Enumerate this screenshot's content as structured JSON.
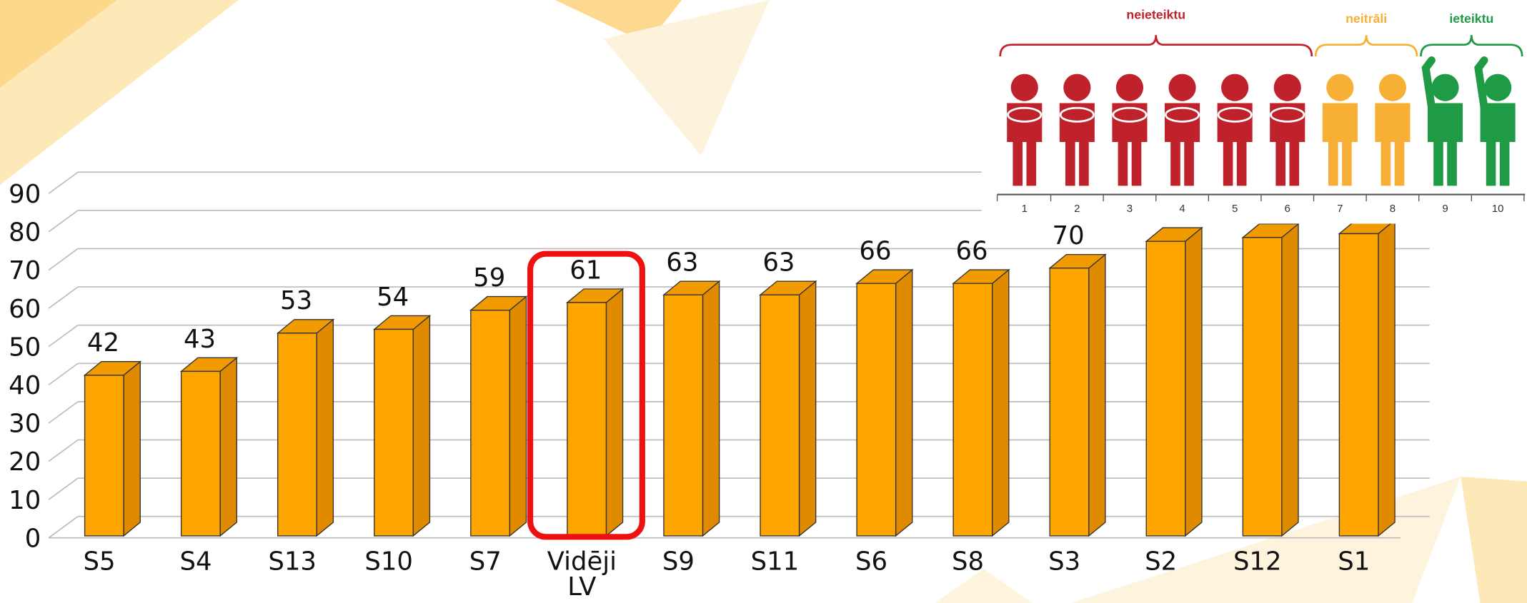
{
  "chart_data": {
    "type": "bar3d",
    "categories": [
      "S5",
      "S4",
      "S13",
      "S10",
      "S7",
      "Vidēji LV",
      "S9",
      "S11",
      "S6",
      "S8",
      "S3",
      "S2",
      "S12",
      "S1"
    ],
    "values": [
      42,
      43,
      53,
      54,
      59,
      61,
      63,
      63,
      66,
      66,
      70,
      77,
      78,
      79
    ],
    "color": "#ffa500",
    "ylim": [
      0,
      90
    ],
    "yticks": [
      0,
      10,
      20,
      30,
      40,
      50,
      60,
      70,
      80,
      90
    ],
    "grid": true,
    "highlight_index": 5,
    "highlight_color": "#ee1111"
  },
  "inset": {
    "groups": [
      {
        "label": "neieteiktu",
        "color": "#c0222b",
        "scores": [
          1,
          2,
          3,
          4,
          5,
          6
        ]
      },
      {
        "label": "neitrāli",
        "color": "#f7b035",
        "scores": [
          7,
          8
        ]
      },
      {
        "label": "ieteiktu",
        "color": "#1f9a45",
        "scores": [
          9,
          10
        ]
      }
    ]
  }
}
